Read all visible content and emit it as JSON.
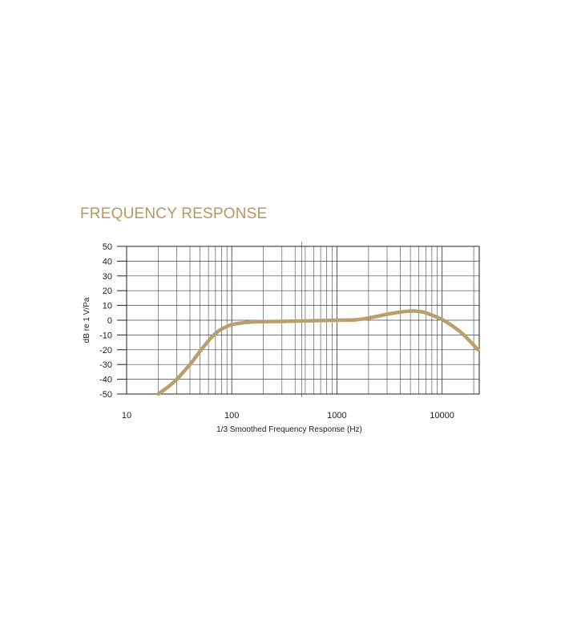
{
  "heading": {
    "title": "FREQUENCY RESPONSE"
  },
  "colors": {
    "title": "#b99760",
    "curve": "#b9a06a",
    "grid": "#444444",
    "axis": "#222222"
  },
  "chart_data": {
    "type": "line",
    "title": "FREQUENCY RESPONSE",
    "xlabel": "1/3 Smoothed Frequency Response (Hz)",
    "ylabel": "dB re 1 V/Pa",
    "x_scale": "log",
    "xlim": [
      10,
      22000
    ],
    "ylim": [
      -50,
      50
    ],
    "x_ticks": [
      10,
      100,
      1000,
      10000
    ],
    "x_tick_labels": [
      "10",
      "100",
      "1000",
      "10000"
    ],
    "y_ticks": [
      50,
      40,
      30,
      20,
      10,
      0,
      -10,
      -20,
      -30,
      -40,
      -50
    ],
    "y_tick_labels": [
      "50",
      "40",
      "30",
      "20",
      "10",
      "0",
      "-10",
      "-20",
      "-30",
      "-40",
      "-50"
    ],
    "grid": true,
    "series": [
      {
        "x": [
          20,
          25,
          30,
          40,
          50,
          60,
          70,
          80,
          100,
          120,
          150,
          200,
          300,
          500,
          1000,
          1500,
          2000,
          3000,
          4000,
          5000,
          6000,
          7000,
          8000,
          10000,
          12000,
          15000,
          18000,
          22000
        ],
        "y": [
          -50,
          -45,
          -40,
          -30,
          -21,
          -14,
          -9,
          -6,
          -3,
          -2,
          -1.3,
          -1,
          -0.8,
          -0.5,
          0,
          0.2,
          1.5,
          4,
          5.5,
          6.2,
          6,
          5,
          3.5,
          0.5,
          -3,
          -8,
          -13.5,
          -20
        ]
      }
    ]
  }
}
